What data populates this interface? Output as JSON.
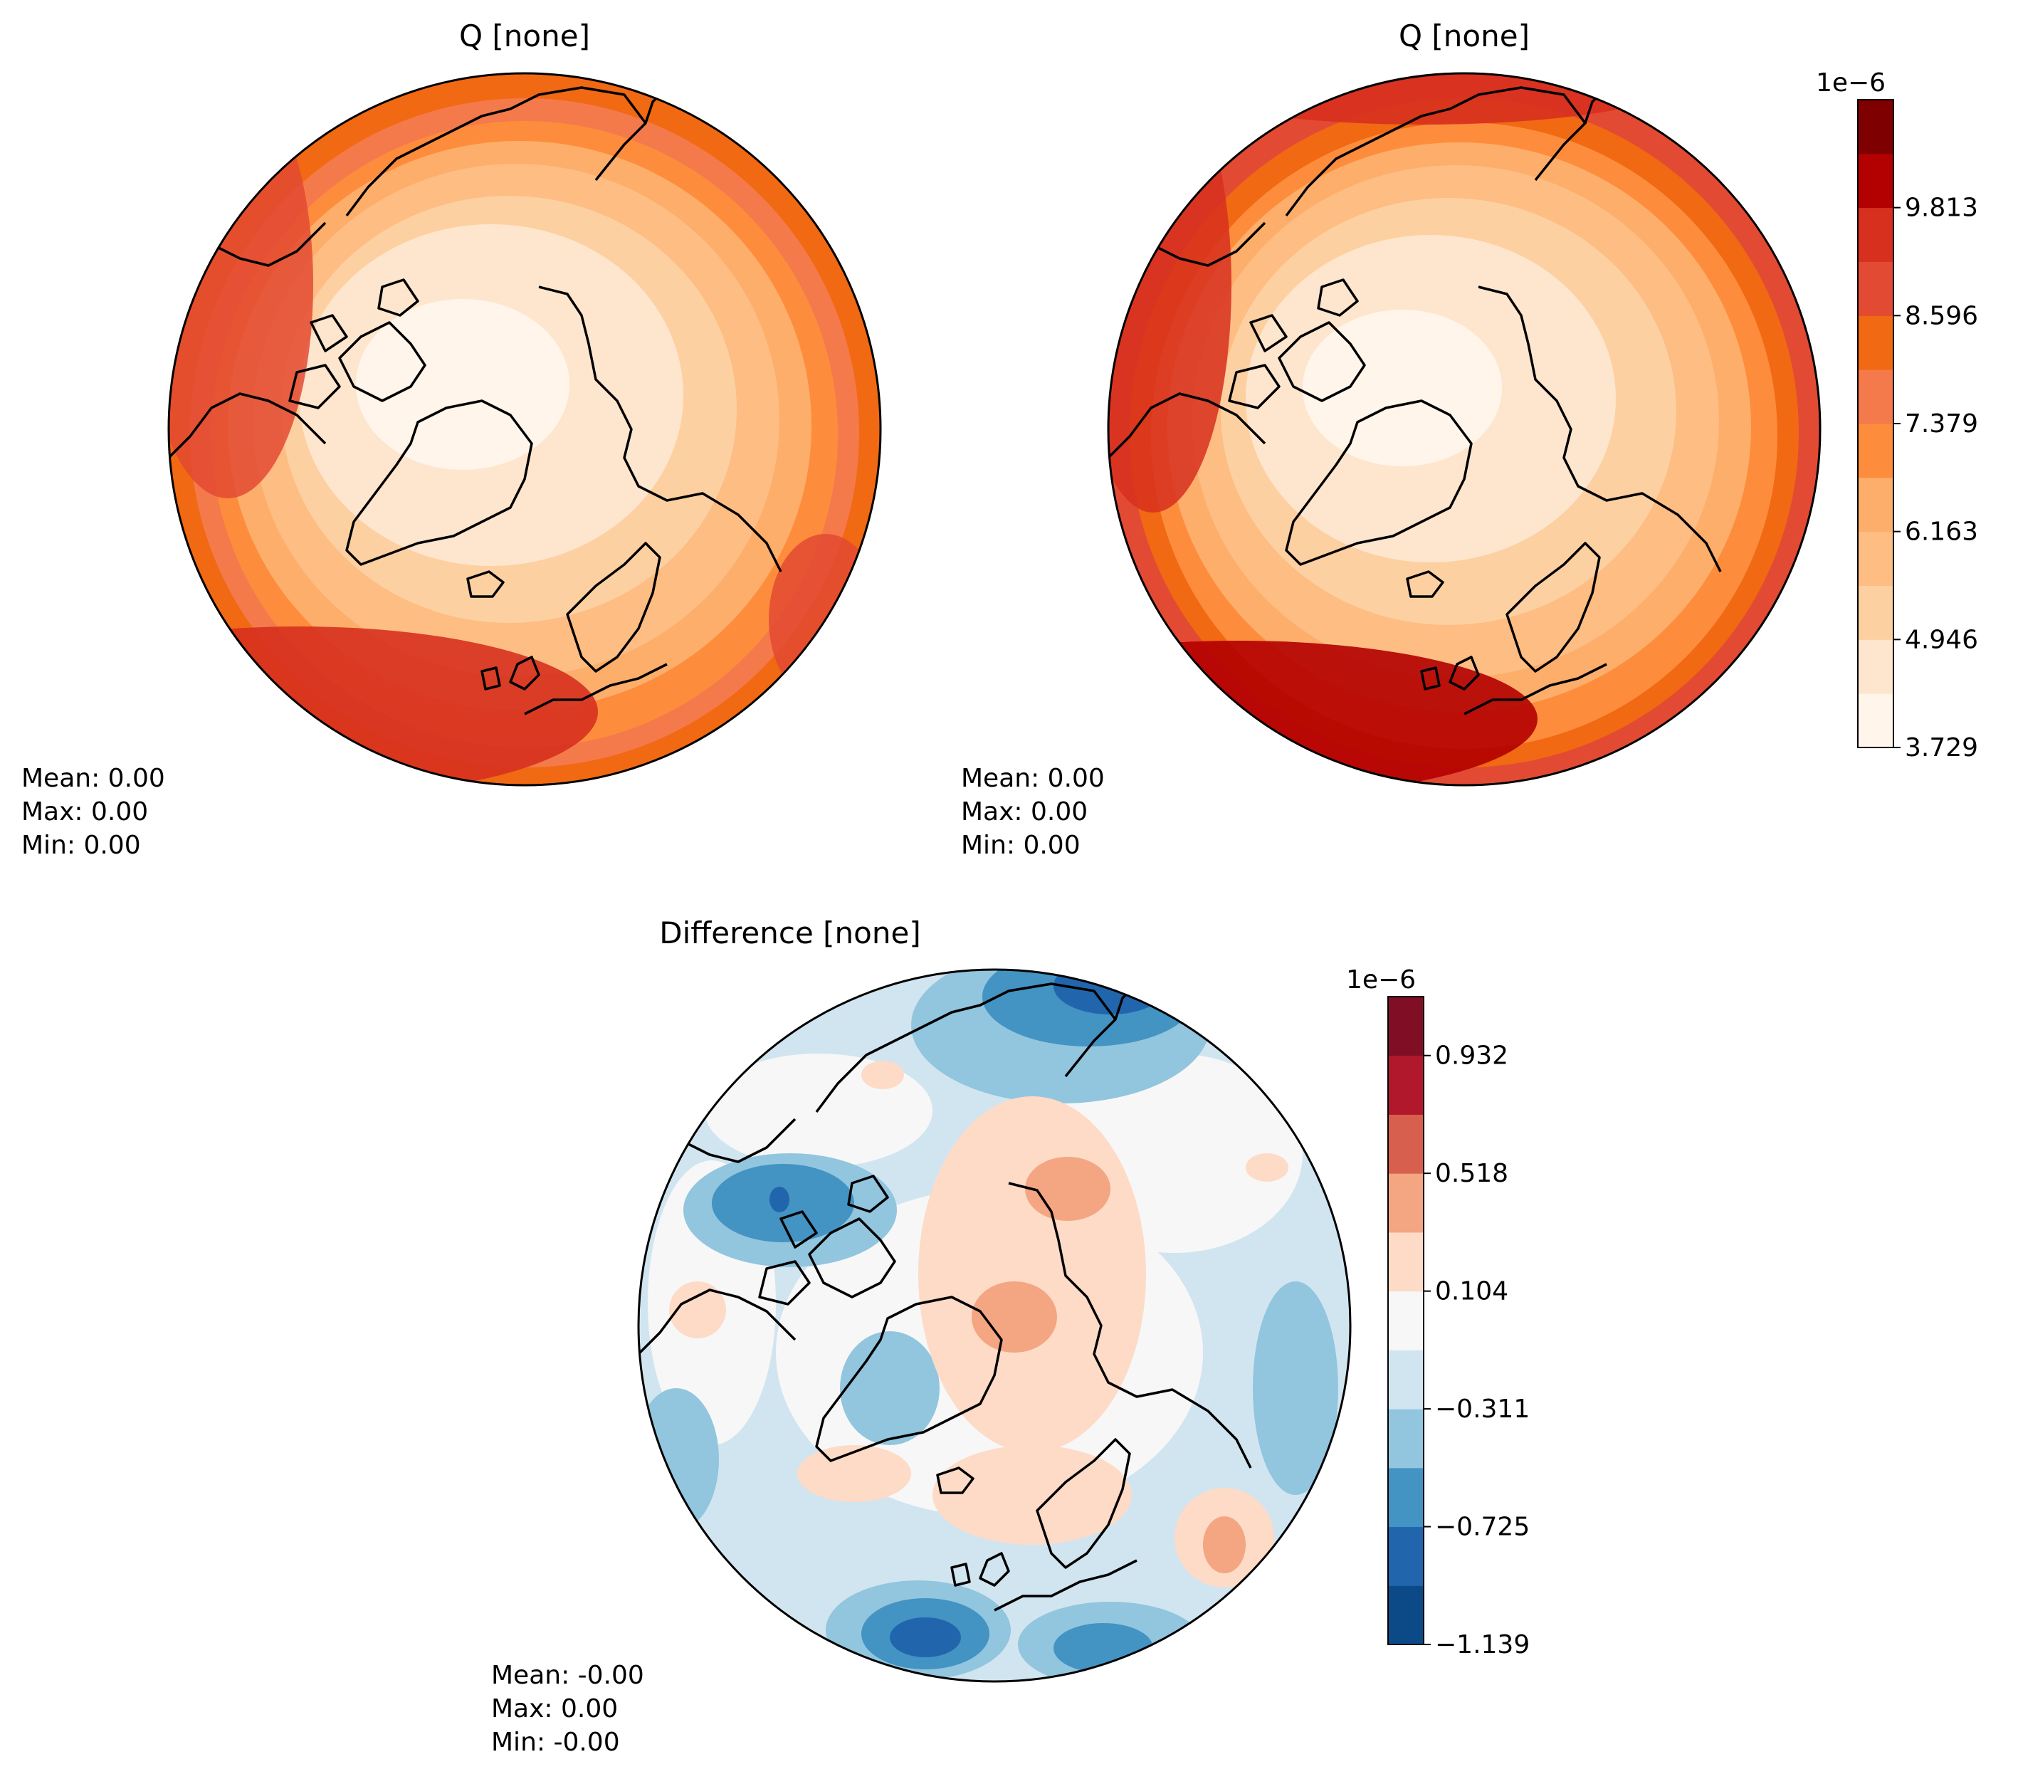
{
  "panels": [
    {
      "title": "Q [none]",
      "stats": [
        "Mean:  0.00",
        "Max:  0.00",
        "Min:  0.00"
      ]
    },
    {
      "title": "Q [none]",
      "stats": [
        "Mean:  0.00",
        "Max:  0.00",
        "Min:  0.00"
      ]
    },
    {
      "title": "Difference [none]",
      "stats": [
        "Mean: -0.00",
        "Max:  0.00",
        "Min: -0.00"
      ]
    }
  ],
  "colorbar_q": {
    "exponent": "1e−6",
    "ticks": [
      "3.729",
      "4.946",
      "6.163",
      "7.379",
      "8.596",
      "9.813"
    ],
    "colors": [
      "#fff5eb",
      "#fee6ce",
      "#fdd0a2",
      "#fdbd83",
      "#fdae6b",
      "#fd8d3c",
      "#f57a4b",
      "#f16913",
      "#e34a33",
      "#d7301f",
      "#b30000",
      "#7f0000"
    ]
  },
  "colorbar_diff": {
    "exponent": "1e−6",
    "ticks": [
      "−1.139",
      "−0.725",
      "−0.311",
      "0.104",
      "0.518",
      "0.932"
    ],
    "colors": [
      "#0b4a86",
      "#2166ac",
      "#4393c3",
      "#92c5de",
      "#d1e5f0",
      "#f7f7f7",
      "#fddbc7",
      "#f4a582",
      "#d6604d",
      "#b2182b",
      "#800f26"
    ]
  }
}
